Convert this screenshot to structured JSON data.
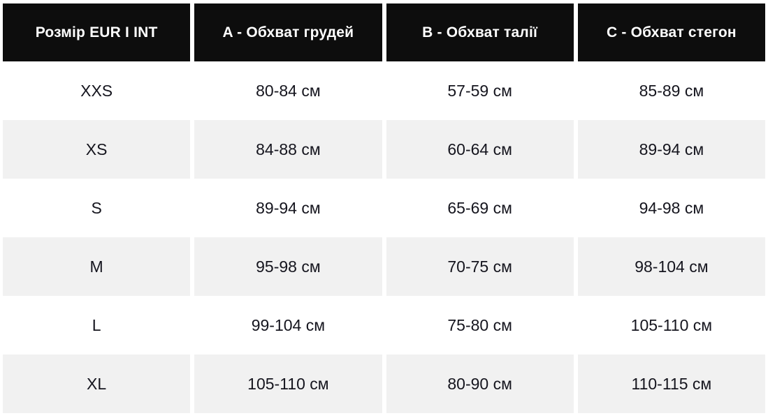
{
  "chart_data": {
    "type": "table",
    "columns": [
      "Розмір EUR I INT",
      "A - Обхват грудей",
      "B - Обхват талії",
      "C - Обхват стегон"
    ],
    "rows": [
      {
        "size": "XXS",
        "chest": "80-84 см",
        "waist": "57-59 см",
        "hips": "85-89 см"
      },
      {
        "size": "XS",
        "chest": "84-88 см",
        "waist": "60-64 см",
        "hips": "89-94 см"
      },
      {
        "size": "S",
        "chest": "89-94 см",
        "waist": "65-69 см",
        "hips": "94-98 см"
      },
      {
        "size": "M",
        "chest": "95-98 см",
        "waist": "70-75 см",
        "hips": "98-104 см"
      },
      {
        "size": "L",
        "chest": "99-104 см",
        "waist": "75-80 см",
        "hips": "105-110 см"
      },
      {
        "size": "XL",
        "chest": "105-110 см",
        "waist": "80-90 см",
        "hips": "110-115 см"
      }
    ],
    "layout": {
      "legend": "none",
      "grid": "off",
      "row_striping": "alternate white / light-gray starting with white"
    }
  },
  "colors": {
    "header_bg": "#0d0d0d",
    "header_text": "#ffffff",
    "row_alt_bg": "#f1f1f1",
    "body_text": "#15151e"
  }
}
